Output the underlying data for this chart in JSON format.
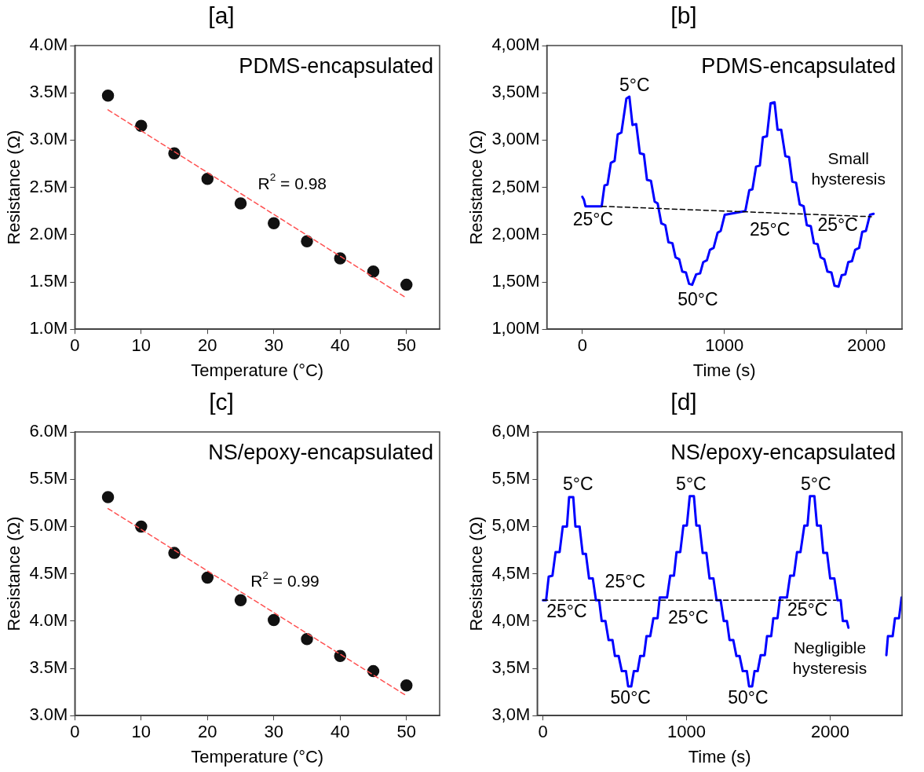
{
  "chart_data": [
    {
      "type": "scatter",
      "title": "[a]",
      "xlabel": "Temperature (°C)",
      "ylabel": "Resistance (Ω)",
      "xlim": [
        0,
        55
      ],
      "xticks": [
        0,
        10,
        20,
        30,
        40,
        50
      ],
      "ylim": [
        1,
        4
      ],
      "yticks": [
        {
          "value": 1,
          "label": "1.0M"
        },
        {
          "value": 1.5,
          "label": "1.5M"
        },
        {
          "value": 2,
          "label": "2.0M"
        },
        {
          "value": 2.5,
          "label": "2.5M"
        },
        {
          "value": 3,
          "label": "3.0M"
        },
        {
          "value": 3.5,
          "label": "3.5M"
        },
        {
          "value": 4,
          "label": "4.0M"
        }
      ],
      "x": [
        5,
        10,
        15,
        20,
        25,
        30,
        35,
        40,
        45,
        50
      ],
      "series": [
        {
          "color": "#111111",
          "marker": "circle",
          "values": [
            3.47,
            3.15,
            2.86,
            2.59,
            2.33,
            2.12,
            1.93,
            1.75,
            1.61,
            1.47
          ]
        },
        {
          "type": "line",
          "color": "#ff5050",
          "marker": "none",
          "line_style": "dashed",
          "x": [
            5,
            50
          ],
          "values": [
            3.32,
            1.33
          ]
        }
      ],
      "annotations": [
        "PDMS-encapsulated",
        "R$^{2}$ = 0.98"
      ]
    },
    {
      "type": "line",
      "title": "[b]",
      "xlabel": "Time (s)",
      "ylabel": "Resistance (Ω)",
      "xlim": [
        -250,
        2250
      ],
      "xticks": [
        0,
        1000,
        2000
      ],
      "ylim": [
        1,
        4
      ],
      "yticks": [
        {
          "value": 1,
          "label": "1,00M"
        },
        {
          "value": 1.5,
          "label": "1,50M"
        },
        {
          "value": 2,
          "label": "2,00M"
        },
        {
          "value": 2.5,
          "label": "2,50M"
        },
        {
          "value": 3,
          "label": "3,00M"
        },
        {
          "value": 3.5,
          "label": "3,50M"
        },
        {
          "value": 4,
          "label": "4,00M"
        }
      ],
      "series": [
        {
          "color": "#0000ff",
          "marker": "none",
          "x": [
            0,
            11,
            22,
            136,
            156,
            177,
            201,
            227,
            249,
            275,
            310,
            331,
            353,
            379,
            405,
            433,
            455,
            483,
            509,
            530,
            556,
            584,
            606,
            634,
            656,
            682,
            703,
            729,
            751,
            773,
            801,
            829,
            851,
            877,
            898,
            924,
            952,
            974,
            1002,
            1147,
            1175,
            1197,
            1223,
            1249,
            1271,
            1299,
            1325,
            1353,
            1374,
            1400,
            1429,
            1455,
            1478,
            1504,
            1530,
            1558,
            1580,
            1608,
            1630,
            1656,
            1677,
            1703,
            1725,
            1753,
            1775,
            1803,
            1825,
            1851,
            1872,
            1898,
            1920,
            1948,
            1970,
            1996,
            2024,
            2050
          ],
          "values": [
            2.4,
            2.37,
            2.3,
            2.3,
            2.52,
            2.53,
            2.76,
            2.78,
            3.06,
            3.08,
            3.44,
            3.46,
            3.16,
            3.17,
            2.86,
            2.85,
            2.58,
            2.57,
            2.35,
            2.33,
            2.12,
            2.1,
            1.92,
            1.91,
            1.76,
            1.74,
            1.61,
            1.6,
            1.48,
            1.47,
            1.58,
            1.59,
            1.71,
            1.73,
            1.84,
            1.86,
            2.02,
            2.04,
            2.21,
            2.25,
            2.47,
            2.48,
            2.72,
            2.73,
            3.03,
            3.04,
            3.39,
            3.4,
            3.11,
            3.11,
            2.83,
            2.82,
            2.56,
            2.55,
            2.32,
            2.3,
            2.1,
            2.09,
            1.91,
            1.9,
            1.76,
            1.74,
            1.61,
            1.6,
            1.46,
            1.45,
            1.57,
            1.58,
            1.71,
            1.72,
            1.84,
            1.86,
            2.03,
            2.04,
            2.21,
            2.22
          ]
        },
        {
          "type": "line",
          "color": "#000000",
          "marker": "none",
          "line_style": "dashed",
          "x": [
            136,
            2035
          ],
          "values": [
            2.3,
            2.19
          ]
        }
      ],
      "annotations": [
        "PDMS-encapsulated",
        "5°C",
        "25°C",
        "50°C",
        "25°C",
        "25°C",
        "Small\nhysteresis"
      ]
    },
    {
      "type": "scatter",
      "title": "[c]",
      "xlabel": "Temperature (°C)",
      "ylabel": "Resistance (Ω)",
      "xlim": [
        0,
        55
      ],
      "xticks": [
        0,
        10,
        20,
        30,
        40,
        50
      ],
      "ylim": [
        3,
        6
      ],
      "yticks": [
        {
          "value": 3,
          "label": "3.0M"
        },
        {
          "value": 3.5,
          "label": "3.5M"
        },
        {
          "value": 4,
          "label": "4.0M"
        },
        {
          "value": 4.5,
          "label": "4.5M"
        },
        {
          "value": 5,
          "label": "5.0M"
        },
        {
          "value": 5.5,
          "label": "5.5M"
        },
        {
          "value": 6,
          "label": "6.0M"
        }
      ],
      "x": [
        5,
        10,
        15,
        20,
        25,
        30,
        35,
        40,
        45,
        50
      ],
      "series": [
        {
          "color": "#111111",
          "marker": "circle",
          "values": [
            5.31,
            5.0,
            4.72,
            4.46,
            4.22,
            4.01,
            3.81,
            3.63,
            3.47,
            3.32
          ]
        },
        {
          "type": "line",
          "color": "#ff5050",
          "marker": "none",
          "line_style": "dashed",
          "x": [
            5,
            50
          ],
          "values": [
            5.19,
            3.21
          ]
        }
      ],
      "annotations": [
        "NS/epoxy-encapsulated",
        "R$^{2}$ = 0.99"
      ]
    },
    {
      "type": "line",
      "title": "[d]",
      "xlabel": "Time (s)",
      "ylabel": "Resistance (Ω)",
      "xlim": [
        -40,
        2500
      ],
      "xticks": [
        0,
        1000,
        2000
      ],
      "ylim": [
        3,
        6
      ],
      "yticks": [
        {
          "value": 3,
          "label": "3,0M"
        },
        {
          "value": 3.5,
          "label": "3,5M"
        },
        {
          "value": 4,
          "label": "4,0M"
        },
        {
          "value": 4.5,
          "label": "4,5M"
        },
        {
          "value": 5,
          "label": "5,0M"
        },
        {
          "value": 5.5,
          "label": "5,5M"
        },
        {
          "value": 6,
          "label": "6,0M"
        }
      ],
      "series": [
        {
          "color": "#0000ff",
          "marker": "none",
          "x": [
            0,
            22,
            40,
            66,
            88,
            116,
            138,
            167,
            182,
            211,
            226,
            255,
            277,
            299,
            321,
            347,
            369,
            391,
            409,
            435,
            457,
            484,
            501,
            527,
            549,
            578,
            593,
            615,
            633,
            659,
            677,
            703,
            721,
            747,
            769,
            798,
            813,
            864,
            886,
            912,
            930,
            956,
            978,
            1002,
            1022,
            1051,
            1068,
            1090,
            1112,
            1138,
            1160,
            1187,
            1209,
            1237,
            1259,
            1281,
            1299,
            1325,
            1347,
            1369,
            1391,
            1420,
            1435,
            1457,
            1473,
            1495,
            1516,
            1545,
            1560,
            1589,
            1604,
            1633,
            1651,
            1699,
            1721,
            1747,
            1769,
            1793,
            1820,
            1842,
            1859,
            1890,
            1908,
            1934,
            1952,
            1978,
            2000,
            2029,
            2051,
            2073,
            2088,
            2116,
            2127,
            2250,
            2391,
            2402,
            2435,
            2451,
            2479,
            2497
          ],
          "values": [
            4.22,
            4.22,
            4.47,
            4.48,
            4.73,
            4.73,
            5.0,
            5.0,
            5.31,
            5.31,
            5.0,
            5.0,
            4.71,
            4.71,
            4.45,
            4.45,
            4.22,
            4.22,
            4.0,
            4.0,
            3.8,
            3.8,
            3.63,
            3.63,
            3.47,
            3.47,
            3.31,
            3.31,
            3.47,
            3.47,
            3.63,
            3.63,
            3.84,
            3.84,
            4.03,
            4.03,
            4.25,
            4.25,
            4.48,
            4.48,
            4.73,
            4.73,
            5.01,
            5.01,
            5.32,
            5.32,
            5.01,
            5.01,
            4.72,
            4.72,
            4.45,
            4.45,
            4.22,
            4.22,
            4.0,
            4.0,
            3.8,
            3.8,
            3.63,
            3.63,
            3.47,
            3.47,
            3.31,
            3.31,
            3.47,
            3.47,
            3.64,
            3.64,
            3.84,
            3.84,
            4.03,
            4.03,
            4.25,
            4.25,
            4.48,
            4.48,
            4.73,
            4.73,
            5.01,
            5.01,
            5.32,
            5.32,
            5.01,
            5.01,
            4.72,
            4.72,
            4.45,
            4.45,
            4.22,
            4.22,
            4.0,
            4.0,
            3.93,
            null,
            3.64,
            3.84,
            3.84,
            4.03,
            4.03,
            4.25
          ]
        },
        {
          "type": "line",
          "color": "#000000",
          "marker": "none",
          "line_style": "dashed",
          "x": [
            0,
            2040
          ],
          "values": [
            4.22,
            4.22
          ]
        }
      ],
      "annotations": [
        "NS/epoxy-encapsulated",
        "5°C",
        "5°C",
        "5°C",
        "25°C",
        "25°C",
        "25°C",
        "25°C",
        "50°C",
        "50°C",
        "Negligible\nhysteresis"
      ]
    }
  ]
}
